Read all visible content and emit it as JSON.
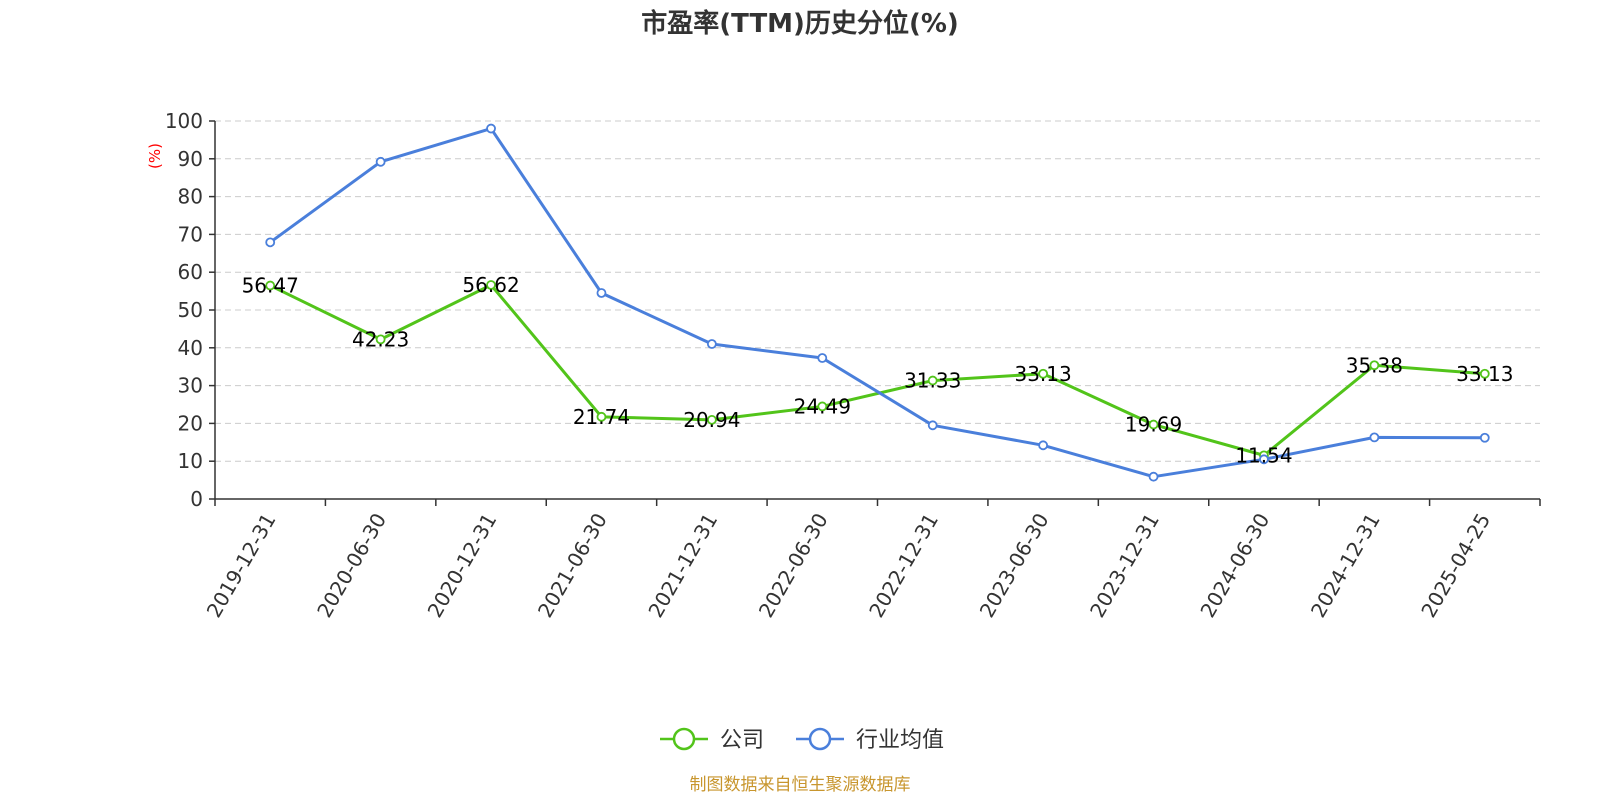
{
  "chart_data": {
    "type": "line",
    "title": "市盈率(TTM)历史分位(%)",
    "ylabel": "(%)",
    "xlabel": "",
    "ylim": [
      0,
      100
    ],
    "yticks": [
      0,
      10,
      20,
      30,
      40,
      50,
      60,
      70,
      80,
      90,
      100
    ],
    "grid": true,
    "legend_position": "bottom-center",
    "categories": [
      "2019-12-31",
      "2020-06-30",
      "2020-12-31",
      "2021-06-30",
      "2021-12-31",
      "2022-06-30",
      "2022-12-31",
      "2023-06-30",
      "2023-12-31",
      "2024-06-30",
      "2024-12-31",
      "2025-04-25"
    ],
    "series": [
      {
        "name": "公司",
        "color": "#52c41a",
        "show_labels": true,
        "values": [
          56.47,
          42.23,
          56.62,
          21.74,
          20.94,
          24.49,
          31.33,
          33.13,
          19.69,
          11.54,
          35.38,
          33.13
        ]
      },
      {
        "name": "行业均值",
        "color": "#4a7fdb",
        "show_labels": false,
        "values": [
          67.9,
          89.2,
          98.0,
          54.5,
          41.0,
          37.3,
          19.5,
          14.2,
          5.9,
          10.5,
          16.3,
          16.2
        ]
      }
    ]
  },
  "ylabel_color": "#ff0000",
  "source": {
    "text": "制图数据来自恒生聚源数据库",
    "color": "#c8962e"
  }
}
